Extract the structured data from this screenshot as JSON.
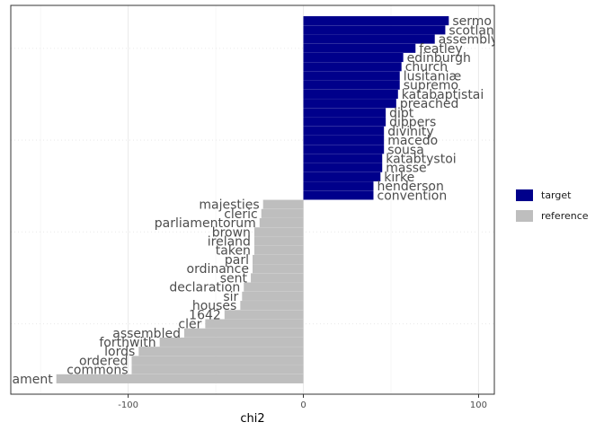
{
  "chart_data": {
    "type": "bar",
    "orientation": "horizontal",
    "xlabel": "chi2",
    "ylabel": "",
    "xlim": [
      -167,
      109
    ],
    "xticks": [
      -100,
      0,
      100
    ],
    "xtick_labels": [
      "-100",
      "0",
      "100"
    ],
    "grid": true,
    "legend_position": "right",
    "series": [
      {
        "name": "target",
        "color": "#00008B"
      },
      {
        "name": "reference",
        "color": "#BEBEBE"
      }
    ],
    "categories": [
      "sermo",
      "scotland",
      "assembly",
      "featley",
      "edinburgh",
      "church",
      "lusitaniæ",
      "supremo",
      "katabaptistai",
      "preached",
      "dipt",
      "dippers",
      "divinity",
      "macedo",
      "sousa",
      "katabtystoi",
      "masse",
      "kirke",
      "henderson",
      "convention",
      "majesties",
      "cleric",
      "parliamentorum",
      "brown",
      "ireland",
      "taken",
      "parl",
      "ordinance",
      "sent",
      "declaration",
      "sir",
      "houses",
      "1642",
      "cler",
      "assembled",
      "forthwith",
      "lords",
      "ordered",
      "commons",
      "parliament"
    ],
    "values": [
      83,
      81,
      75,
      64,
      57,
      56,
      55,
      55,
      54,
      53,
      47,
      47,
      46,
      46,
      46,
      45,
      45,
      44,
      40,
      40,
      -23,
      -24,
      -25,
      -28,
      -28,
      -28,
      -29,
      -29,
      -30,
      -34,
      -35,
      -36,
      -45,
      -56,
      -68,
      -82,
      -94,
      -98,
      -98,
      -141
    ],
    "groups": [
      "target",
      "target",
      "target",
      "target",
      "target",
      "target",
      "target",
      "target",
      "target",
      "target",
      "target",
      "target",
      "target",
      "target",
      "target",
      "target",
      "target",
      "target",
      "target",
      "target",
      "reference",
      "reference",
      "reference",
      "reference",
      "reference",
      "reference",
      "reference",
      "reference",
      "reference",
      "reference",
      "reference",
      "reference",
      "reference",
      "reference",
      "reference",
      "reference",
      "reference",
      "reference",
      "reference",
      "reference"
    ]
  },
  "legend": {
    "items": [
      {
        "label": "target",
        "color": "#00008B"
      },
      {
        "label": "reference",
        "color": "#BEBEBE"
      }
    ]
  }
}
